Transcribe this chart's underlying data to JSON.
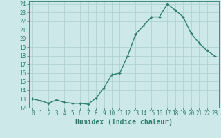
{
  "x": [
    0,
    1,
    2,
    3,
    4,
    5,
    6,
    7,
    8,
    9,
    10,
    11,
    12,
    13,
    14,
    15,
    16,
    17,
    18,
    19,
    20,
    21,
    22,
    23
  ],
  "y": [
    13.0,
    12.8,
    12.5,
    12.9,
    12.6,
    12.5,
    12.5,
    12.4,
    13.1,
    14.3,
    15.8,
    16.0,
    18.0,
    20.5,
    21.5,
    22.5,
    22.5,
    24.0,
    23.3,
    22.5,
    20.6,
    19.5,
    18.6,
    18.0
  ],
  "xlabel": "Humidex (Indice chaleur)",
  "xlim": [
    -0.5,
    23.5
  ],
  "ylim": [
    12,
    24.3
  ],
  "yticks": [
    12,
    13,
    14,
    15,
    16,
    17,
    18,
    19,
    20,
    21,
    22,
    23,
    24
  ],
  "xticks": [
    0,
    1,
    2,
    3,
    4,
    5,
    6,
    7,
    8,
    9,
    10,
    11,
    12,
    13,
    14,
    15,
    16,
    17,
    18,
    19,
    20,
    21,
    22,
    23
  ],
  "line_color": "#2e7d6e",
  "bg_color": "#cce8e8",
  "grid_color": "#aacece",
  "tick_label_fontsize": 5.5,
  "xlabel_fontsize": 7.0,
  "markersize": 3.5,
  "linewidth": 1.0
}
